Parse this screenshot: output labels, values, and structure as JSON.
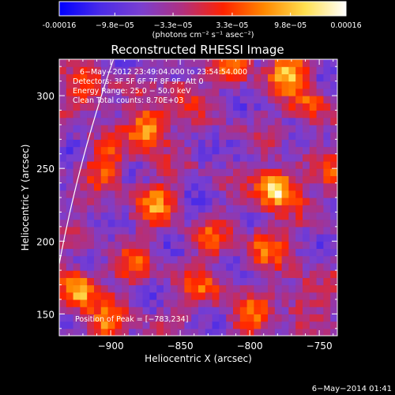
{
  "colorbar": {
    "tick_labels": [
      "-0.00016",
      "−9.8e−05",
      "−3.3e−05",
      "3.3e−05",
      "9.8e−05",
      "0.00016"
    ],
    "tick_values": [
      -0.00016,
      -9.8e-05,
      -3.3e-05,
      3.3e-05,
      9.8e-05,
      0.00016
    ],
    "unit": "(photons cm⁻² s⁻¹ asec⁻²)",
    "range": [
      -0.00016,
      0.00016
    ],
    "colors": [
      "#0000ff",
      "#4a2be8",
      "#7a3fd0",
      "#b03080",
      "#ff2200",
      "#ff8800",
      "#ffe050",
      "#ffffff"
    ]
  },
  "chart_data": {
    "type": "heatmap",
    "title": "Reconstructed RHESSI Image",
    "xlabel": "Heliocentric X (arcsec)",
    "ylabel": "Heliocentric Y (arcsec)",
    "xlim": [
      -937,
      -737
    ],
    "ylim": [
      135,
      325
    ],
    "x_ticks": [
      -900,
      -850,
      -800,
      -750
    ],
    "y_ticks": [
      150,
      200,
      250,
      300
    ],
    "x_tick_labels": [
      "−900",
      "−850",
      "−800",
      "−750"
    ],
    "y_tick_labels": [
      "150",
      "200",
      "250",
      "300"
    ],
    "annotations": [
      "6−May−2012 23:49:04.000 to 23:54:54.000",
      "Detectors: 3F 5F 6F 7F 8F 9F, Att 0",
      "Energy Range: 25.0 − 50.0 keV",
      "Clean      Total counts: 8.70E+03"
    ],
    "peak_label": "Position of Peak = [−783,234]",
    "peak": {
      "x": -783,
      "y": 234
    },
    "bright_sources": [
      {
        "x": -783,
        "y": 234,
        "strength": 1.0
      },
      {
        "x": -875,
        "y": 275,
        "strength": 0.85
      },
      {
        "x": -775,
        "y": 315,
        "strength": 0.8
      },
      {
        "x": -925,
        "y": 165,
        "strength": 0.75
      },
      {
        "x": -870,
        "y": 225,
        "strength": 0.55
      },
      {
        "x": -905,
        "y": 250,
        "strength": 0.5
      },
      {
        "x": -790,
        "y": 195,
        "strength": 0.5
      },
      {
        "x": -760,
        "y": 290,
        "strength": 0.45
      },
      {
        "x": -815,
        "y": 320,
        "strength": 0.5
      },
      {
        "x": -885,
        "y": 180,
        "strength": 0.4
      },
      {
        "x": -835,
        "y": 165,
        "strength": 0.4
      },
      {
        "x": -905,
        "y": 140,
        "strength": 0.55
      },
      {
        "x": -800,
        "y": 145,
        "strength": 0.45
      },
      {
        "x": -765,
        "y": 160,
        "strength": 0.35
      },
      {
        "x": -740,
        "y": 240,
        "strength": 0.4
      },
      {
        "x": -850,
        "y": 300,
        "strength": 0.35
      },
      {
        "x": -830,
        "y": 200,
        "strength": 0.3
      },
      {
        "x": -920,
        "y": 300,
        "strength": 0.45
      }
    ],
    "grid": false,
    "limb_circle": true
  },
  "footer": {
    "date": "6−May−2014 01:41"
  }
}
